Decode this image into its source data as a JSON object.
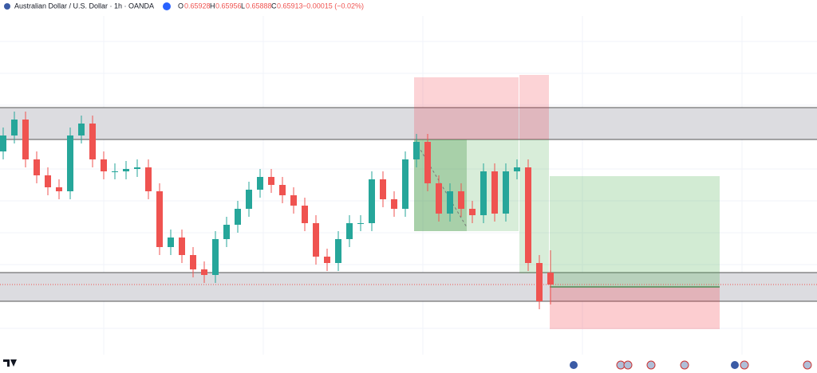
{
  "header": {
    "title": "Australian Dollar / U.S. Dollar · 1h · OANDA",
    "o_label": "O",
    "h_label": "H",
    "l_label": "L",
    "c_label": "C",
    "change": "−0.00015 (−0.02%)"
  },
  "chart_data": {
    "type": "candlestick",
    "up_color": "#26a69a",
    "down_color": "#ef5350",
    "ylim": [
      0.6583,
      0.6625
    ],
    "open": [
      0.6608,
      0.661,
      0.6612,
      0.6607,
      0.6605,
      0.66035,
      0.6603,
      0.661,
      0.66115,
      0.6607,
      0.66055,
      0.66055,
      0.66058,
      0.6606,
      0.6603,
      0.6596,
      0.65972,
      0.6595,
      0.65932,
      0.65925,
      0.6597,
      0.65988,
      0.66008,
      0.66032,
      0.66048,
      0.66038,
      0.66025,
      0.66012,
      0.6599,
      0.65948,
      0.6594,
      0.6597,
      0.6599,
      0.6599,
      0.66045,
      0.6602,
      0.66008,
      0.6607,
      0.66092,
      0.6604,
      0.66002,
      0.6603,
      0.66008,
      0.66,
      0.66055,
      0.66002,
      0.66055,
      0.6606,
      0.6594,
      0.65928
    ],
    "high": [
      0.6611,
      0.6613,
      0.6613,
      0.6608,
      0.6606,
      0.66045,
      0.6611,
      0.66125,
      0.66125,
      0.6608,
      0.66065,
      0.66068,
      0.6607,
      0.6607,
      0.6604,
      0.65982,
      0.65982,
      0.6596,
      0.65942,
      0.6598,
      0.65998,
      0.66018,
      0.66042,
      0.66058,
      0.66058,
      0.66048,
      0.66035,
      0.66022,
      0.66,
      0.65958,
      0.6598,
      0.66,
      0.66,
      0.66055,
      0.66055,
      0.6603,
      0.6608,
      0.66102,
      0.66102,
      0.6605,
      0.6604,
      0.6604,
      0.66018,
      0.66065,
      0.66065,
      0.66065,
      0.6607,
      0.6607,
      0.6595,
      0.65956
    ],
    "low": [
      0.6607,
      0.6609,
      0.6606,
      0.6604,
      0.66025,
      0.6602,
      0.6602,
      0.6609,
      0.6606,
      0.66045,
      0.66045,
      0.66045,
      0.66048,
      0.6602,
      0.6595,
      0.6595,
      0.6594,
      0.65922,
      0.65915,
      0.65915,
      0.6596,
      0.65978,
      0.65998,
      0.66022,
      0.66028,
      0.66015,
      0.66002,
      0.6598,
      0.65938,
      0.6593,
      0.6593,
      0.6596,
      0.6598,
      0.6598,
      0.6601,
      0.65998,
      0.65998,
      0.6606,
      0.6603,
      0.65992,
      0.65992,
      0.65998,
      0.6599,
      0.6599,
      0.65992,
      0.65992,
      0.66045,
      0.6593,
      0.65882,
      0.65888
    ],
    "close": [
      0.661,
      0.6612,
      0.6607,
      0.6605,
      0.66035,
      0.6603,
      0.661,
      0.66115,
      0.6607,
      0.66055,
      0.66055,
      0.66058,
      0.6606,
      0.6603,
      0.6596,
      0.65972,
      0.6595,
      0.65932,
      0.65925,
      0.6597,
      0.65988,
      0.66008,
      0.66032,
      0.66048,
      0.66038,
      0.66025,
      0.66012,
      0.6599,
      0.65948,
      0.6594,
      0.6597,
      0.6599,
      0.6599,
      0.66045,
      0.6602,
      0.66008,
      0.6607,
      0.66092,
      0.6604,
      0.66002,
      0.6603,
      0.66008,
      0.66,
      0.66055,
      0.66002,
      0.66055,
      0.6606,
      0.6594,
      0.65892,
      0.65913
    ]
  }
}
